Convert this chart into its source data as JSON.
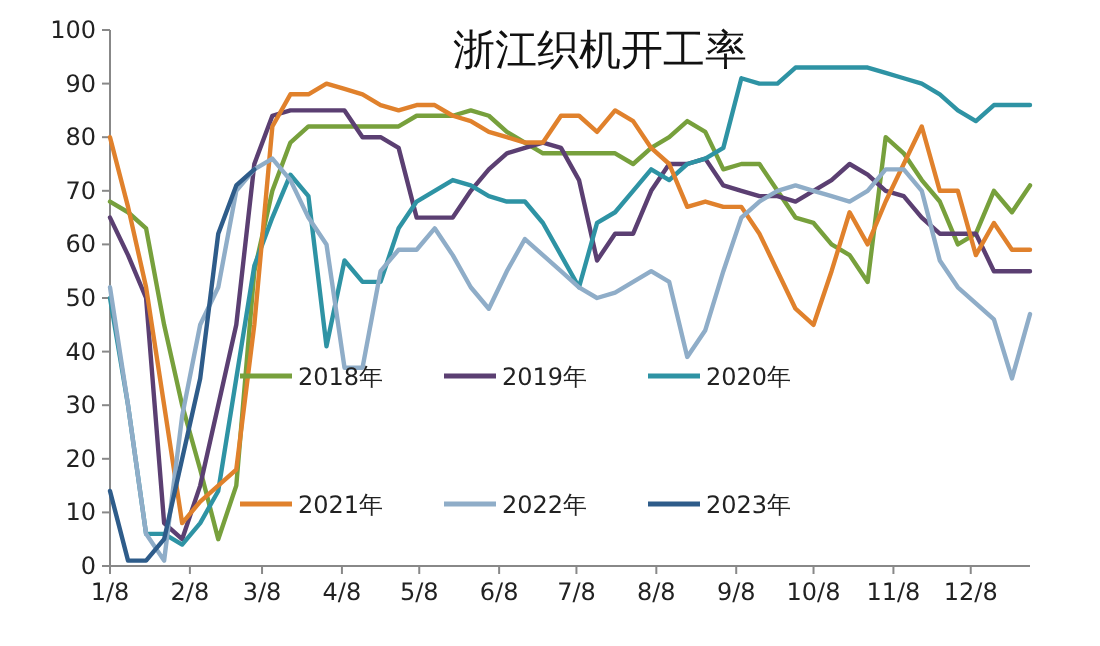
{
  "chart_data": {
    "type": "line",
    "title": "浙江织机开工率",
    "x": [
      "--01-08",
      "--01-15",
      "--01-22",
      "--01-29",
      "--02-05",
      "--02-12",
      "--02-19",
      "--02-26",
      "--03-05",
      "--03-12",
      "--03-19",
      "--03-26",
      "--04-02",
      "--04-09",
      "--04-16",
      "--04-23",
      "--04-30",
      "--05-07",
      "--05-14",
      "--05-21",
      "--05-28",
      "--06-04",
      "--06-11",
      "--06-18",
      "--06-25",
      "--07-02",
      "--07-09",
      "--07-16",
      "--07-23",
      "--07-30",
      "--08-06",
      "--08-13",
      "--08-20",
      "--08-27",
      "--09-03",
      "--09-10",
      "--09-17",
      "--09-24",
      "--10-01",
      "--10-08",
      "--10-15",
      "--10-22",
      "--10-29",
      "--11-05",
      "--11-12",
      "--11-19",
      "--11-26",
      "--12-03",
      "--12-10",
      "--12-17",
      "--12-24",
      "--12-31"
    ],
    "series": [
      {
        "name": "2018年",
        "color": "#77a03c",
        "values": [
          68,
          66,
          63,
          45,
          30,
          18,
          5,
          15,
          55,
          70,
          79,
          82,
          82,
          82,
          82,
          82,
          82,
          84,
          84,
          84,
          85,
          84,
          81,
          79,
          77,
          77,
          77,
          77,
          77,
          75,
          78,
          80,
          83,
          81,
          74,
          75,
          75,
          70,
          65,
          64,
          60,
          58,
          53,
          80,
          77,
          72,
          68,
          60,
          62,
          70,
          66,
          71
        ]
      },
      {
        "name": "2019年",
        "color": "#5b3f72",
        "values": [
          65,
          58,
          50,
          8,
          5,
          15,
          30,
          45,
          75,
          84,
          85,
          85,
          85,
          85,
          80,
          80,
          78,
          65,
          65,
          65,
          70,
          74,
          77,
          78,
          79,
          78,
          72,
          57,
          62,
          62,
          70,
          75,
          75,
          76,
          71,
          70,
          69,
          69,
          68,
          70,
          72,
          75,
          73,
          70,
          69,
          65,
          62,
          62,
          62,
          55,
          55,
          55
        ]
      },
      {
        "name": "2020年",
        "color": "#2e93a4",
        "values": [
          50,
          30,
          6,
          6,
          4,
          8,
          14,
          35,
          56,
          65,
          73,
          69,
          41,
          57,
          53,
          53,
          63,
          68,
          70,
          72,
          71,
          69,
          68,
          68,
          64,
          58,
          52,
          64,
          66,
          70,
          74,
          72,
          75,
          76,
          78,
          91,
          90,
          90,
          93,
          93,
          93,
          93,
          93,
          92,
          91,
          90,
          88,
          85,
          83,
          86,
          86,
          86
        ]
      },
      {
        "name": "2021年",
        "color": "#e0812c",
        "values": [
          80,
          67,
          52,
          30,
          8,
          12,
          15,
          18,
          45,
          82,
          88,
          88,
          90,
          89,
          88,
          86,
          85,
          86,
          86,
          84,
          83,
          81,
          80,
          79,
          79,
          84,
          84,
          81,
          85,
          83,
          78,
          75,
          67,
          68,
          67,
          67,
          62,
          55,
          48,
          45,
          55,
          66,
          60,
          68,
          75,
          82,
          70,
          70,
          58,
          64,
          59,
          59
        ]
      },
      {
        "name": "2022年",
        "color": "#8fadc8",
        "values": [
          52,
          30,
          6,
          1,
          28,
          45,
          52,
          70,
          74,
          76,
          72,
          65,
          60,
          37,
          37,
          55,
          59,
          59,
          63,
          58,
          52,
          48,
          55,
          61,
          58,
          55,
          52,
          50,
          51,
          53,
          55,
          53,
          39,
          44,
          55,
          65,
          68,
          70,
          71,
          70,
          69,
          68,
          70,
          74,
          74,
          70,
          57,
          52,
          49,
          46,
          35,
          47
        ]
      },
      {
        "name": "2023年",
        "color": "#2e5c8a",
        "values": [
          14,
          1,
          1,
          5,
          20,
          35,
          62,
          71,
          74,
          null,
          null,
          null,
          null,
          null,
          null,
          null,
          null,
          null,
          null,
          null,
          null,
          null,
          null,
          null,
          null,
          null,
          null,
          null,
          null,
          null,
          null,
          null,
          null,
          null,
          null,
          null,
          null,
          null,
          null,
          null,
          null,
          null,
          null,
          null,
          null,
          null,
          null,
          null,
          null,
          null,
          null,
          null
        ]
      }
    ],
    "xlim": [
      "--01-08",
      "--12-31"
    ],
    "xticks": [
      {
        "value": "--01-08",
        "label": "1/8"
      },
      {
        "value": "--02-08",
        "label": "2/8"
      },
      {
        "value": "--03-08",
        "label": "3/8"
      },
      {
        "value": "--04-08",
        "label": "4/8"
      },
      {
        "value": "--05-08",
        "label": "5/8"
      },
      {
        "value": "--06-08",
        "label": "6/8"
      },
      {
        "value": "--07-08",
        "label": "7/8"
      },
      {
        "value": "--08-08",
        "label": "8/8"
      },
      {
        "value": "--09-08",
        "label": "9/8"
      },
      {
        "value": "--10-08",
        "label": "10/8"
      },
      {
        "value": "--11-08",
        "label": "11/8"
      },
      {
        "value": "--12-08",
        "label": "12/8"
      }
    ],
    "ylim": [
      0,
      100
    ],
    "yticks": [
      0,
      10,
      20,
      30,
      40,
      50,
      60,
      70,
      80,
      90,
      100
    ],
    "legend": "bottom",
    "grid": false,
    "marker": "none",
    "line_style": "solid"
  }
}
